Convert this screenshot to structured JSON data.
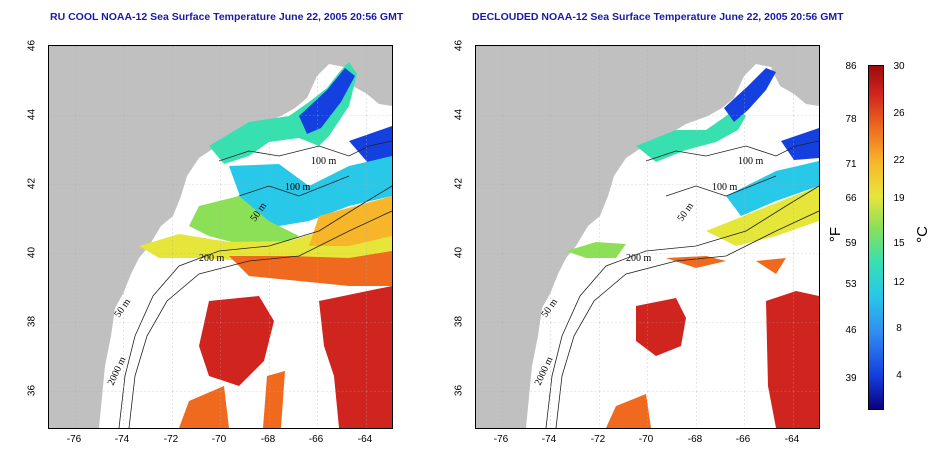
{
  "titles": {
    "left": "RU COOL NOAA-12 Sea Surface Temperature June 22, 2005 20:56 GMT",
    "right": "DECLOUDED NOAA-12 Sea Surface Temperature June 22, 2005 20:56 GMT"
  },
  "axes": {
    "lat_ticks": [
      "46",
      "44",
      "42",
      "40",
      "38",
      "36"
    ],
    "lon_ticks": [
      "-76",
      "-74",
      "-72",
      "-70",
      "-68",
      "-66",
      "-64"
    ]
  },
  "contours": {
    "left": [
      "100 m",
      "100 m",
      "50 m",
      "200 m",
      "50 m",
      "2000 m"
    ],
    "right": [
      "100 m",
      "100 m",
      "50 m",
      "200 m",
      "50 m",
      "2000 m"
    ]
  },
  "colorbar": {
    "fahrenheit_unit": "°F",
    "celsius_unit": "°C",
    "fahrenheit": [
      "86",
      "78",
      "71",
      "66",
      "59",
      "53",
      "46",
      "39"
    ],
    "celsius": [
      "30",
      "26",
      "22",
      "19",
      "15",
      "12",
      "8",
      "4"
    ]
  },
  "colors": {
    "title": "#1a1aa6",
    "land": "#c0c0c0",
    "cold": "#1540e0",
    "warm": "#d0241e"
  }
}
